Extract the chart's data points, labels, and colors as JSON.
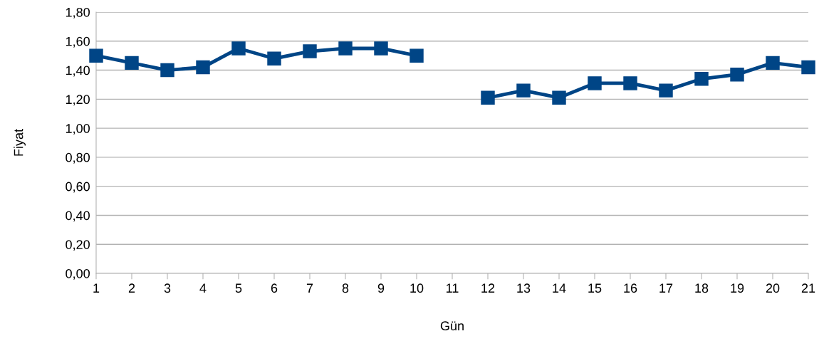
{
  "chart_data": {
    "type": "line",
    "xlabel": "Gün",
    "ylabel": "Fiyat",
    "categories": [
      "1",
      "2",
      "3",
      "4",
      "5",
      "6",
      "7",
      "8",
      "9",
      "10",
      "11",
      "12",
      "13",
      "14",
      "15",
      "16",
      "17",
      "18",
      "19",
      "20",
      "21"
    ],
    "series": [
      {
        "color": "#004586",
        "values": [
          1.5,
          1.45,
          1.4,
          1.42,
          1.55,
          1.48,
          1.53,
          1.55,
          1.55,
          1.5,
          null,
          1.21,
          1.26,
          1.21,
          1.31,
          1.31,
          1.26,
          1.34,
          1.37,
          1.45,
          1.42
        ]
      }
    ],
    "ylim": [
      0,
      1.8
    ],
    "yticks": [
      {
        "value": 0,
        "label": "0,00"
      },
      {
        "value": 0.2,
        "label": "0,20"
      },
      {
        "value": 0.4,
        "label": "0,40"
      },
      {
        "value": 0.6,
        "label": "0,60"
      },
      {
        "value": 0.8,
        "label": "0,80"
      },
      {
        "value": 1.0,
        "label": "1,00"
      },
      {
        "value": 1.2,
        "label": "1,20"
      },
      {
        "value": 1.4,
        "label": "1,40"
      },
      {
        "value": 1.6,
        "label": "1,60"
      },
      {
        "value": 1.8,
        "label": "1,80"
      }
    ],
    "grid": "y",
    "marker": "square",
    "line_style": "solid",
    "legend": false
  }
}
